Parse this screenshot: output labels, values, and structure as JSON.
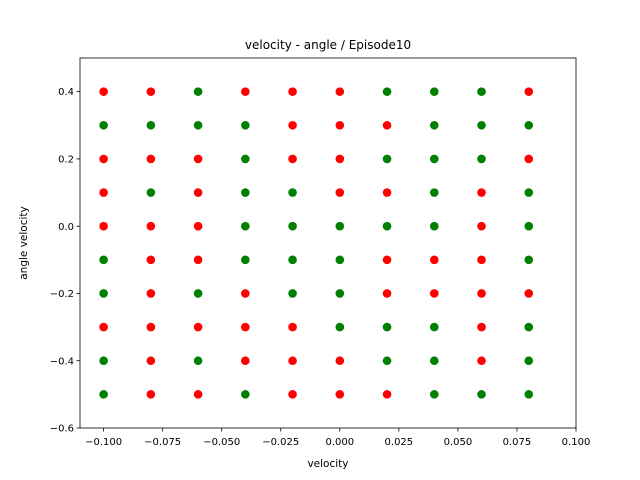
{
  "chart_data": {
    "type": "scatter",
    "title": "velocity - angle / Episode10",
    "xlabel": "velocity",
    "ylabel": "angle velocity",
    "xlim": [
      -0.11,
      0.1
    ],
    "ylim": [
      -0.6,
      0.5
    ],
    "x_ticks": [
      -0.1,
      -0.075,
      -0.05,
      -0.025,
      0.0,
      0.025,
      0.05,
      0.075,
      0.1
    ],
    "x_tick_labels": [
      "−0.100",
      "−0.075",
      "−0.050",
      "−0.025",
      "0.000",
      "0.025",
      "0.050",
      "0.075",
      "0.100"
    ],
    "y_ticks": [
      -0.6,
      -0.4,
      -0.2,
      0.0,
      0.2,
      0.4
    ],
    "y_tick_labels": [
      "−0.6",
      "−0.4",
      "−0.2",
      "0.0",
      "0.2",
      "0.4"
    ],
    "grid": false,
    "legend": "none",
    "colors": {
      "red": "#ff0000",
      "green": "#008000"
    },
    "x_values": [
      -0.1,
      -0.08,
      -0.06,
      -0.04,
      -0.02,
      0.0,
      0.02,
      0.04,
      0.06,
      0.08
    ],
    "y_values": [
      0.4,
      0.3,
      0.2,
      0.1,
      0.0,
      -0.1,
      -0.2,
      -0.3,
      -0.4,
      -0.5
    ],
    "point_colors": [
      "RRGRRRGGGR",
      "GGGGRRRGGG",
      "RRRGRRGGGR",
      "RGRGGRRGRG",
      "RRRGGGGGRG",
      "GRRGGGRRRG",
      "GRGRGGRRRR",
      "RRRRRGGGRG",
      "GRGRRRGGRG",
      "GRRGRRRGGG"
    ]
  }
}
